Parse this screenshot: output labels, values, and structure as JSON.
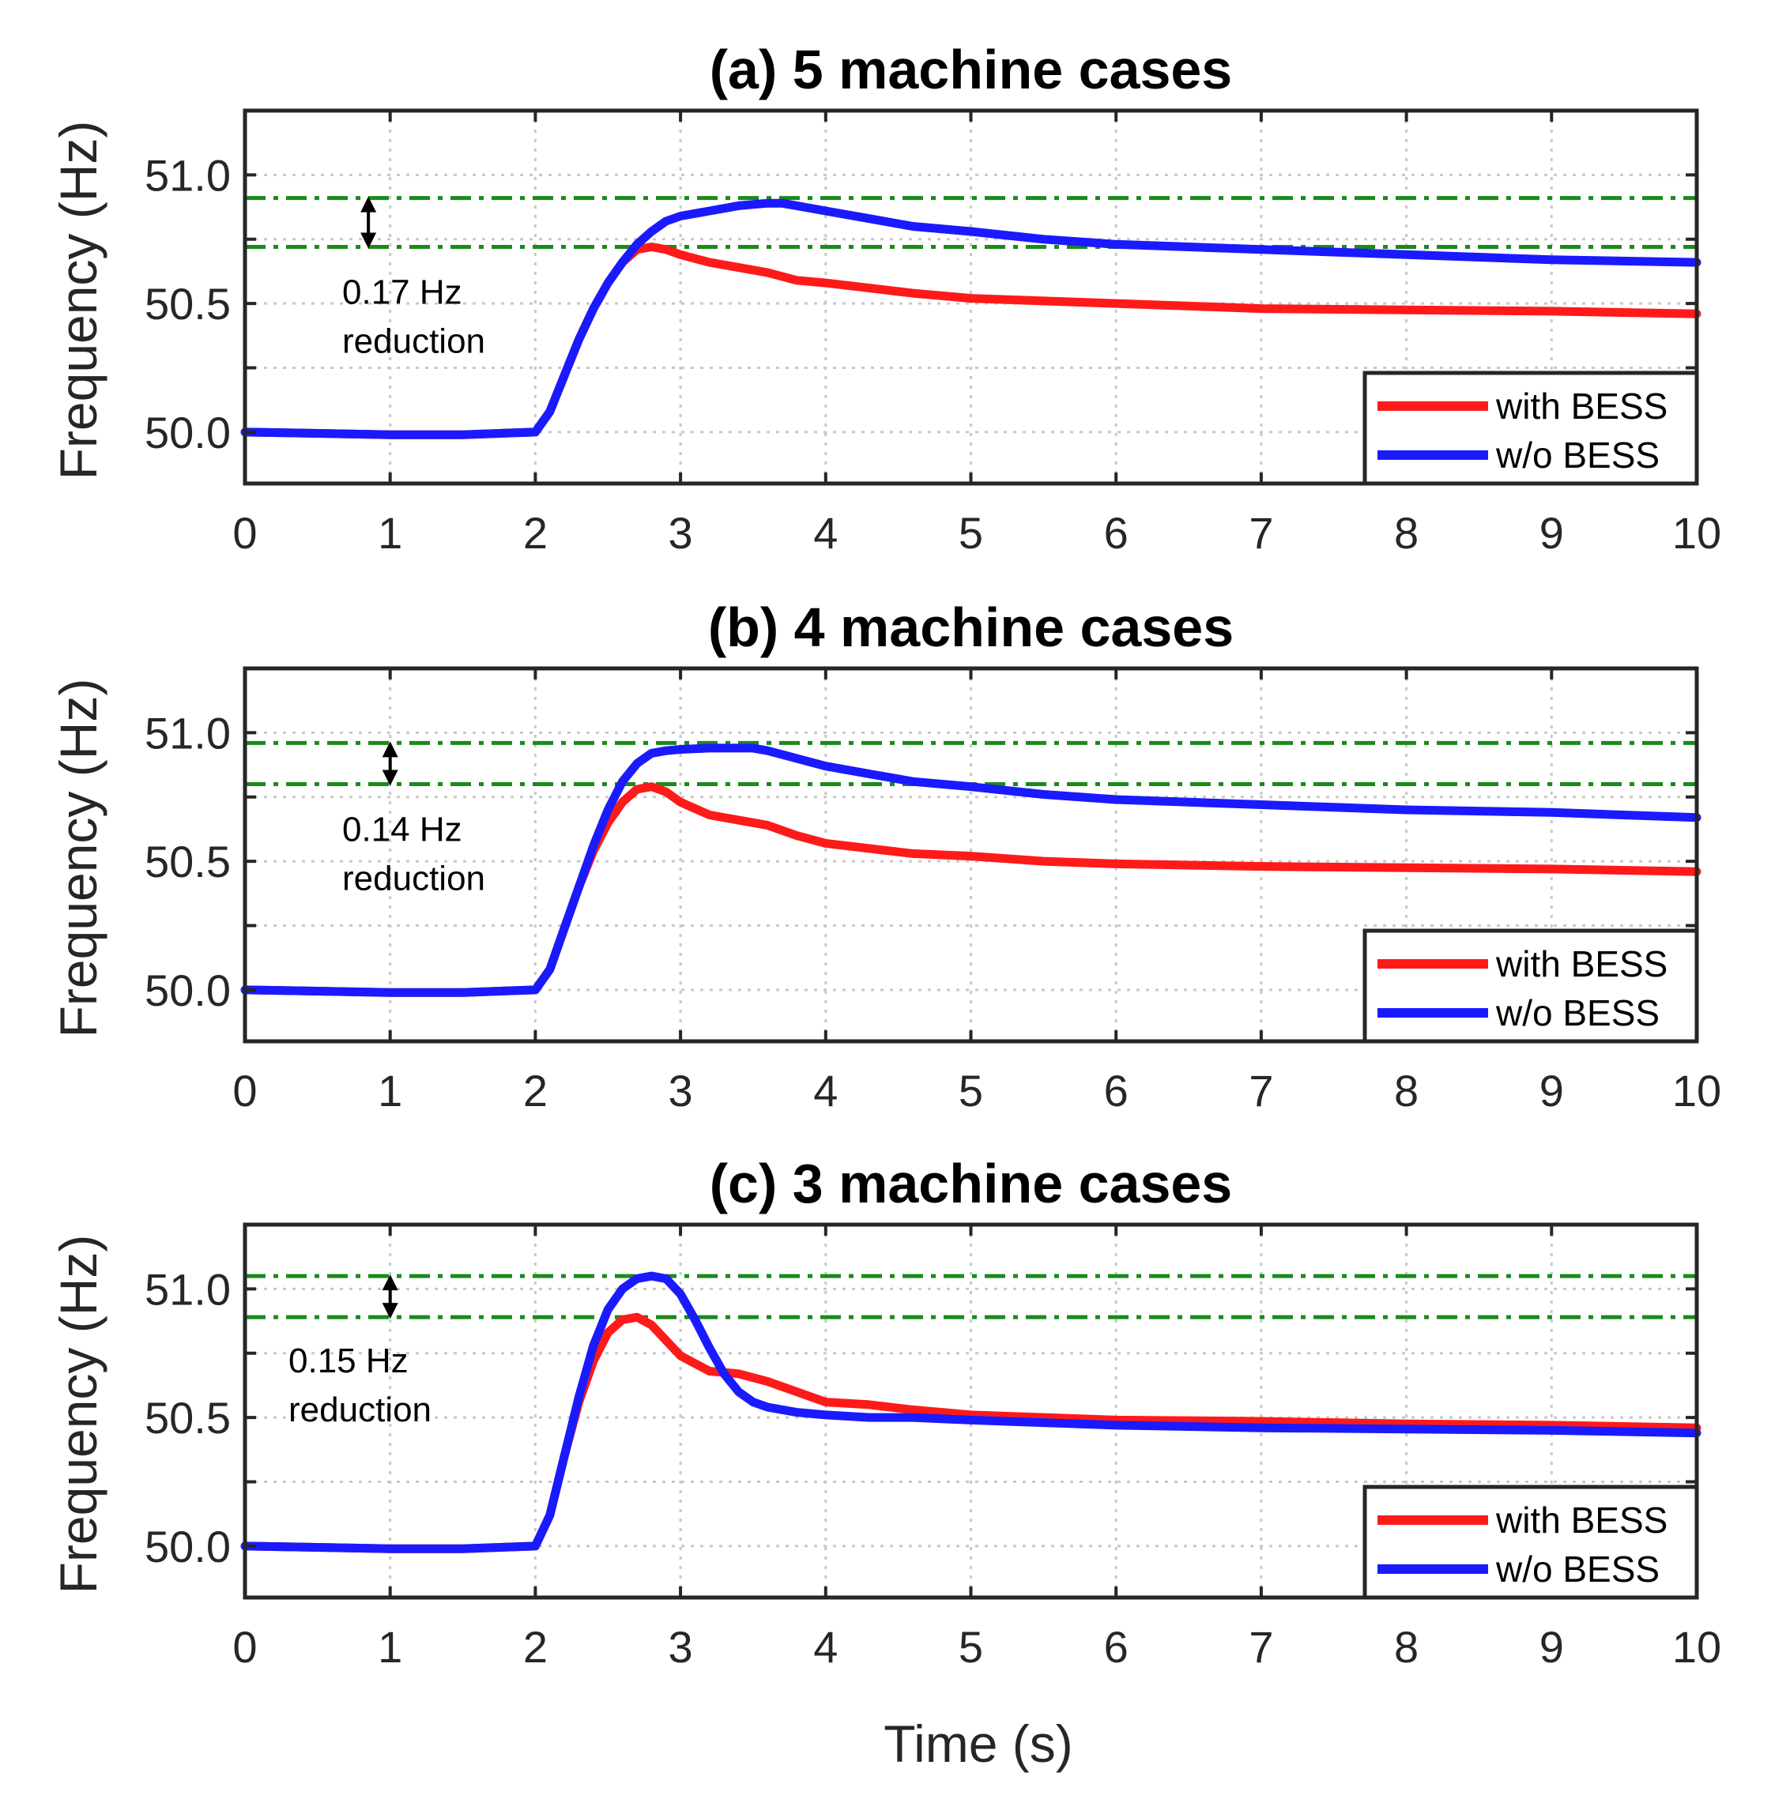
{
  "figure": {
    "xlabel": "Time (s)",
    "ylabel": "Frequency (Hz)"
  },
  "colors": {
    "with_bess": "#ff1a1a",
    "without_bess": "#1a1aff",
    "reference": "#1a8a1a",
    "grid": "#c8c8c8",
    "axes": "#262626"
  },
  "chart_data": [
    {
      "type": "line",
      "title": "(a) 5 machine cases",
      "xlabel": "Time (s)",
      "ylabel": "Frequency (Hz)",
      "xlim": [
        0,
        10
      ],
      "ylim": [
        49.8,
        51.25
      ],
      "xticks": [
        0,
        1,
        2,
        3,
        4,
        5,
        6,
        7,
        8,
        9,
        10
      ],
      "xtick_labels": [
        "0",
        "1",
        "2",
        "3",
        "4",
        "5",
        "6",
        "7",
        "8",
        "9",
        "10"
      ],
      "yticks": [
        50.0,
        50.5,
        51.0
      ],
      "ytick_labels": [
        "50.0",
        "50.5",
        "51.0"
      ],
      "grid": true,
      "legend_position": "bottom-right",
      "reference_lines": [
        50.91,
        50.72
      ],
      "annotation": {
        "value": "0.17 Hz",
        "label": "reduction",
        "x": 0.85
      },
      "series": [
        {
          "name": "with BESS",
          "x": [
            0,
            0.5,
            1,
            1.5,
            2,
            2.1,
            2.2,
            2.3,
            2.4,
            2.5,
            2.6,
            2.7,
            2.8,
            2.9,
            3.0,
            3.2,
            3.4,
            3.6,
            3.8,
            4.0,
            4.3,
            4.6,
            5,
            5.5,
            6,
            7,
            8,
            9,
            10
          ],
          "values": [
            50.0,
            49.995,
            49.99,
            49.99,
            50.0,
            50.08,
            50.22,
            50.36,
            50.48,
            50.58,
            50.66,
            50.71,
            50.72,
            50.71,
            50.69,
            50.66,
            50.64,
            50.62,
            50.59,
            50.58,
            50.56,
            50.54,
            50.52,
            50.51,
            50.5,
            50.48,
            50.475,
            50.47,
            50.46
          ]
        },
        {
          "name": "w/o BESS",
          "x": [
            0,
            0.5,
            1,
            1.5,
            2,
            2.1,
            2.2,
            2.3,
            2.4,
            2.5,
            2.6,
            2.7,
            2.8,
            2.9,
            3.0,
            3.2,
            3.4,
            3.6,
            3.7,
            3.8,
            4.0,
            4.3,
            4.6,
            5,
            5.5,
            6,
            6.5,
            7,
            8,
            9,
            10
          ],
          "values": [
            50.0,
            49.995,
            49.99,
            49.99,
            50.0,
            50.08,
            50.22,
            50.36,
            50.48,
            50.58,
            50.66,
            50.73,
            50.78,
            50.82,
            50.84,
            50.86,
            50.88,
            50.89,
            50.89,
            50.88,
            50.86,
            50.83,
            50.8,
            50.78,
            50.75,
            50.73,
            50.72,
            50.71,
            50.69,
            50.67,
            50.66
          ]
        }
      ]
    },
    {
      "type": "line",
      "title": "(b) 4 machine cases",
      "xlabel": "Time (s)",
      "ylabel": "Frequency (Hz)",
      "xlim": [
        0,
        10
      ],
      "ylim": [
        49.8,
        51.25
      ],
      "xticks": [
        0,
        1,
        2,
        3,
        4,
        5,
        6,
        7,
        8,
        9,
        10
      ],
      "xtick_labels": [
        "0",
        "1",
        "2",
        "3",
        "4",
        "5",
        "6",
        "7",
        "8",
        "9",
        "10"
      ],
      "yticks": [
        50.0,
        50.5,
        51.0
      ],
      "ytick_labels": [
        "50.0",
        "50.5",
        "51.0"
      ],
      "grid": true,
      "legend_position": "bottom-right",
      "reference_lines": [
        50.96,
        50.8
      ],
      "annotation": {
        "value": "0.14 Hz",
        "label": "reduction",
        "x": 1.0
      },
      "series": [
        {
          "name": "with BESS",
          "x": [
            0,
            0.5,
            1,
            1.5,
            2,
            2.1,
            2.2,
            2.3,
            2.4,
            2.5,
            2.6,
            2.7,
            2.8,
            2.9,
            3.0,
            3.2,
            3.4,
            3.6,
            3.8,
            4.0,
            4.3,
            4.6,
            5,
            5.5,
            6,
            7,
            8,
            9,
            10
          ],
          "values": [
            50.0,
            49.995,
            49.99,
            49.99,
            50.0,
            50.08,
            50.24,
            50.4,
            50.54,
            50.65,
            50.73,
            50.78,
            50.79,
            50.77,
            50.73,
            50.68,
            50.66,
            50.64,
            50.6,
            50.57,
            50.55,
            50.53,
            50.52,
            50.5,
            50.49,
            50.48,
            50.475,
            50.47,
            50.46
          ]
        },
        {
          "name": "w/o BESS",
          "x": [
            0,
            0.5,
            1,
            1.5,
            2,
            2.1,
            2.2,
            2.3,
            2.4,
            2.5,
            2.6,
            2.7,
            2.8,
            2.9,
            3.0,
            3.2,
            3.4,
            3.5,
            3.6,
            3.8,
            4.0,
            4.3,
            4.6,
            5,
            5.5,
            6,
            6.5,
            7,
            8,
            9,
            10
          ],
          "values": [
            50.0,
            49.995,
            49.99,
            49.99,
            50.0,
            50.08,
            50.24,
            50.4,
            50.56,
            50.7,
            50.81,
            50.88,
            50.92,
            50.93,
            50.935,
            50.94,
            50.94,
            50.94,
            50.93,
            50.9,
            50.87,
            50.84,
            50.81,
            50.79,
            50.76,
            50.74,
            50.73,
            50.72,
            50.7,
            50.69,
            50.67
          ]
        }
      ]
    },
    {
      "type": "line",
      "title": "(c) 3 machine cases",
      "xlabel": "Time (s)",
      "ylabel": "Frequency (Hz)",
      "xlim": [
        0,
        10
      ],
      "ylim": [
        49.8,
        51.25
      ],
      "xticks": [
        0,
        1,
        2,
        3,
        4,
        5,
        6,
        7,
        8,
        9,
        10
      ],
      "xtick_labels": [
        "0",
        "1",
        "2",
        "3",
        "4",
        "5",
        "6",
        "7",
        "8",
        "9",
        "10"
      ],
      "yticks": [
        50.0,
        50.5,
        51.0
      ],
      "ytick_labels": [
        "50.0",
        "50.5",
        "51.0"
      ],
      "grid": true,
      "legend_position": "bottom-right",
      "reference_lines": [
        51.05,
        50.89
      ],
      "annotation": {
        "value": "0.15 Hz",
        "label": "reduction",
        "x": 1.0
      },
      "series": [
        {
          "name": "with BESS",
          "x": [
            0,
            0.5,
            1,
            1.5,
            2,
            2.1,
            2.2,
            2.3,
            2.4,
            2.5,
            2.6,
            2.7,
            2.8,
            2.9,
            3.0,
            3.2,
            3.4,
            3.6,
            3.8,
            4.0,
            4.3,
            4.6,
            5,
            5.5,
            6,
            7,
            8,
            9,
            10
          ],
          "values": [
            50.0,
            49.995,
            49.99,
            49.99,
            50.0,
            50.12,
            50.35,
            50.56,
            50.72,
            50.83,
            50.88,
            50.89,
            50.86,
            50.8,
            50.74,
            50.68,
            50.67,
            50.64,
            50.6,
            50.56,
            50.55,
            50.53,
            50.51,
            50.5,
            50.49,
            50.485,
            50.475,
            50.47,
            50.46
          ]
        },
        {
          "name": "w/o BESS",
          "x": [
            0,
            0.5,
            1,
            1.5,
            2,
            2.1,
            2.2,
            2.3,
            2.4,
            2.5,
            2.6,
            2.7,
            2.8,
            2.9,
            3.0,
            3.1,
            3.2,
            3.3,
            3.4,
            3.5,
            3.6,
            3.8,
            4.0,
            4.3,
            4.6,
            5,
            5.5,
            6,
            7,
            8,
            9,
            10
          ],
          "values": [
            50.0,
            49.995,
            49.99,
            49.99,
            50.0,
            50.12,
            50.35,
            50.58,
            50.78,
            50.92,
            51.0,
            51.04,
            51.05,
            51.04,
            50.98,
            50.88,
            50.77,
            50.67,
            50.6,
            50.56,
            50.54,
            50.52,
            50.51,
            50.5,
            50.5,
            50.49,
            50.48,
            50.47,
            50.46,
            50.455,
            50.45,
            50.44
          ]
        }
      ]
    }
  ]
}
